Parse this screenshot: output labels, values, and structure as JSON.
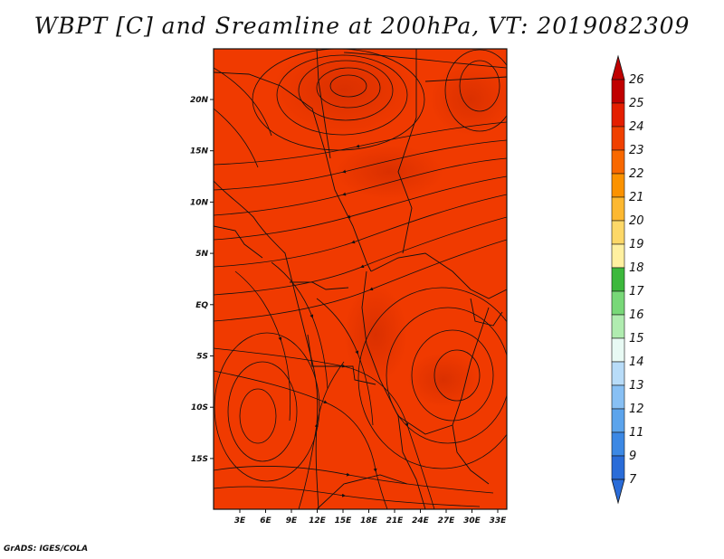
{
  "title": "WBPT [C] and Sreamline at 200hPa, VT: 2019082309",
  "footer": "GrADS: IGES/COLA",
  "map": {
    "lat_labels": [
      "20N",
      "15N",
      "10N",
      "5N",
      "EQ",
      "5S",
      "10S",
      "15S"
    ],
    "lon_labels": [
      "3E",
      "6E",
      "9E",
      "12E",
      "15E",
      "18E",
      "21E",
      "24E",
      "27E",
      "30E",
      "33E"
    ],
    "lon_range": [
      0,
      35
    ],
    "lat_range": [
      -20,
      24
    ],
    "field_color": "#f03a00",
    "field_dark": "#d82a00"
  },
  "colorbar": {
    "levels": [
      "26",
      "25",
      "24",
      "23",
      "22",
      "21",
      "20",
      "19",
      "18",
      "17",
      "16",
      "15",
      "14",
      "13",
      "12",
      "11",
      "9",
      "7"
    ],
    "colors": [
      "#c00000",
      "#e41e00",
      "#f04000",
      "#f86800",
      "#fb9200",
      "#fdb830",
      "#fdd868",
      "#fff0a0",
      "#3cb83c",
      "#78d878",
      "#b0ecb0",
      "#e8faf4",
      "#b8dcf8",
      "#88c0f4",
      "#5ca4ec",
      "#3c88e4",
      "#2a6cd8"
    ]
  }
}
